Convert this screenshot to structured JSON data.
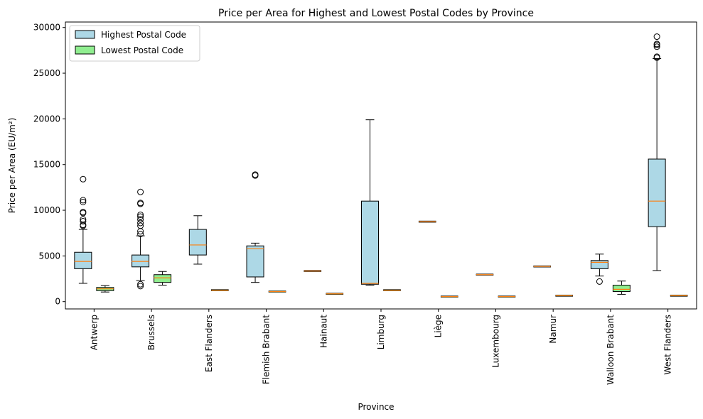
{
  "chart_data": {
    "type": "box",
    "title": "Price per Area for Highest and Lowest Postal Codes by Province",
    "xlabel": "Province",
    "ylabel": "Price per Area (EU/m²)",
    "ylim": [
      -800,
      30600
    ],
    "yticks": [
      0,
      5000,
      10000,
      15000,
      20000,
      25000,
      30000
    ],
    "grid": false,
    "legend_position": "top-left",
    "categories": [
      "Antwerp",
      "Brussels",
      "East Flanders",
      "Flemish Brabant",
      "Hainaut",
      "Limburg",
      "Liège",
      "Luxembourg",
      "Namur",
      "Walloon Brabant",
      "West Flanders"
    ],
    "series": [
      {
        "name": "Highest Postal Code",
        "color": "#add8e6",
        "boxes": [
          {
            "whisker_low": 2000,
            "q1": 3600,
            "median": 4400,
            "q3": 5400,
            "whisker_high": 7900,
            "outliers": [
              8300,
              8400,
              8800,
              9000,
              9700,
              9800,
              10900,
              11100,
              13400
            ]
          },
          {
            "whisker_low": 2300,
            "q1": 3800,
            "median": 4400,
            "q3": 5100,
            "whisker_high": 7200,
            "outliers": [
              1700,
              1900,
              7400,
              7700,
              8300,
              8600,
              9000,
              9300,
              9500,
              10700,
              10800,
              12000
            ]
          },
          {
            "whisker_low": 4100,
            "q1": 5100,
            "median": 6200,
            "q3": 7900,
            "whisker_high": 9400,
            "outliers": []
          },
          {
            "whisker_low": 2100,
            "q1": 2700,
            "median": 5800,
            "q3": 6100,
            "whisker_high": 6400,
            "outliers": [
              13800,
              13900
            ]
          },
          {
            "whisker_low": 3350,
            "q1": 3350,
            "median": 3350,
            "q3": 3350,
            "whisker_high": 3350,
            "outliers": []
          },
          {
            "whisker_low": 1800,
            "q1": 1900,
            "median": 2000,
            "q3": 11000,
            "whisker_high": 19900,
            "outliers": []
          },
          {
            "whisker_low": 8750,
            "q1": 8750,
            "median": 8750,
            "q3": 8750,
            "whisker_high": 8750,
            "outliers": []
          },
          {
            "whisker_low": 2950,
            "q1": 2950,
            "median": 2950,
            "q3": 2950,
            "whisker_high": 2950,
            "outliers": []
          },
          {
            "whisker_low": 3850,
            "q1": 3850,
            "median": 3850,
            "q3": 3850,
            "whisker_high": 3850,
            "outliers": []
          },
          {
            "whisker_low": 2800,
            "q1": 3600,
            "median": 4300,
            "q3": 4500,
            "whisker_high": 5200,
            "outliers": [
              2200
            ]
          },
          {
            "whisker_low": 3400,
            "q1": 8200,
            "median": 11000,
            "q3": 15600,
            "whisker_high": 26600,
            "outliers": [
              26700,
              26800,
              27900,
              28100,
              28200,
              29000
            ]
          }
        ]
      },
      {
        "name": "Lowest Postal Code",
        "color": "#90ee90",
        "boxes": [
          {
            "whisker_low": 1050,
            "q1": 1200,
            "median": 1400,
            "q3": 1550,
            "whisker_high": 1750,
            "outliers": []
          },
          {
            "whisker_low": 1800,
            "q1": 2100,
            "median": 2600,
            "q3": 2950,
            "whisker_high": 3300,
            "outliers": []
          },
          {
            "whisker_low": 1250,
            "q1": 1250,
            "median": 1250,
            "q3": 1250,
            "whisker_high": 1250,
            "outliers": []
          },
          {
            "whisker_low": 1100,
            "q1": 1100,
            "median": 1100,
            "q3": 1100,
            "whisker_high": 1100,
            "outliers": []
          },
          {
            "whisker_low": 850,
            "q1": 850,
            "median": 850,
            "q3": 850,
            "whisker_high": 850,
            "outliers": []
          },
          {
            "whisker_low": 1250,
            "q1": 1250,
            "median": 1250,
            "q3": 1250,
            "whisker_high": 1250,
            "outliers": []
          },
          {
            "whisker_low": 550,
            "q1": 550,
            "median": 550,
            "q3": 550,
            "whisker_high": 550,
            "outliers": []
          },
          {
            "whisker_low": 550,
            "q1": 550,
            "median": 550,
            "q3": 550,
            "whisker_high": 550,
            "outliers": []
          },
          {
            "whisker_low": 650,
            "q1": 650,
            "median": 650,
            "q3": 650,
            "whisker_high": 650,
            "outliers": []
          },
          {
            "whisker_low": 800,
            "q1": 1100,
            "median": 1350,
            "q3": 1800,
            "whisker_high": 2250,
            "outliers": []
          },
          {
            "whisker_low": 650,
            "q1": 650,
            "median": 650,
            "q3": 650,
            "whisker_high": 650,
            "outliers": []
          }
        ]
      }
    ]
  }
}
